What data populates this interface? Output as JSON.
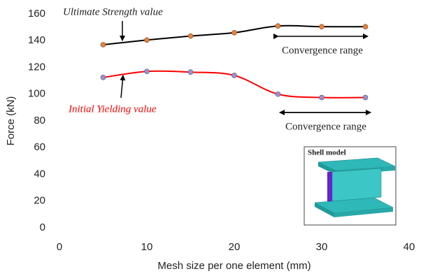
{
  "chart_data": {
    "type": "line",
    "x_label": "Mesh size per one element (mm)",
    "y_label": "Force (kN)",
    "xlim": [
      0,
      40
    ],
    "xticks": [
      0,
      10,
      20,
      30,
      40
    ],
    "ylim": [
      0,
      160
    ],
    "yticks": [
      0,
      20,
      40,
      60,
      80,
      100,
      120,
      140,
      160
    ],
    "grid": false,
    "series": [
      {
        "name": "Ultimate Strength value",
        "color": "#000000",
        "marker_color": "#f08030",
        "x": [
          5,
          10,
          15,
          20,
          25,
          30,
          35
        ],
        "values": [
          137,
          140.5,
          143.5,
          146,
          151,
          150.5,
          150.5
        ]
      },
      {
        "name": "Initial Yielding value",
        "color": "#ff0000",
        "marker_color": "#9b8fd8",
        "x": [
          5,
          10,
          15,
          20,
          25,
          30,
          35
        ],
        "values": [
          112.5,
          117,
          116.5,
          114,
          100,
          97.5,
          97.5
        ]
      }
    ],
    "annotations": [
      "Convergence range",
      "Convergence range"
    ],
    "inset_label": "Shell model"
  }
}
